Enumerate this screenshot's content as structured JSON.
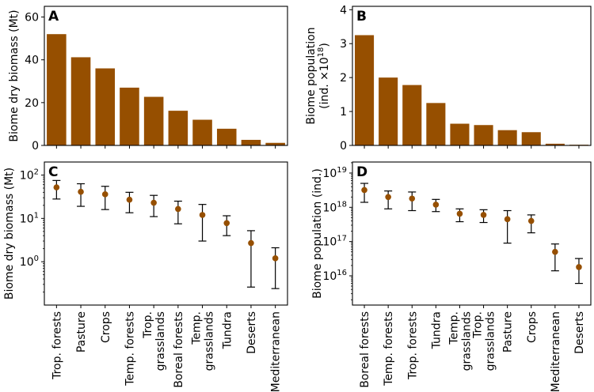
{
  "bar_color": "#964f00",
  "chart_data": [
    {
      "panel": "A",
      "type": "bar",
      "ylabel": "Biome dry biomass (Mt)",
      "categories": [
        "Trop. forests",
        "Pasture",
        "Crops",
        "Temp. forests",
        "Trop. grasslands",
        "Boreal forests",
        "Temp. grasslands",
        "Tundra",
        "Deserts",
        "Mediterranean"
      ],
      "values": [
        52.0,
        41.2,
        36.0,
        27.0,
        22.7,
        16.2,
        12.0,
        7.8,
        2.6,
        1.2
      ],
      "ylim": [
        0,
        65
      ],
      "ticks": [
        0,
        20,
        40,
        60
      ],
      "tick_labels": [
        "0",
        "20",
        "40",
        "60"
      ]
    },
    {
      "panel": "B",
      "type": "bar",
      "ylabel_line1": "Biome population",
      "ylabel_line2_prefix": "(ind. ×10",
      "ylabel_exp": "18",
      "ylabel_suffix": ")",
      "categories": [
        "Boreal forests",
        "Temp. forests",
        "Trop. forests",
        "Tundra",
        "Temp. grasslands",
        "Trop. grasslands",
        "Pasture",
        "Crops",
        "Mediterranean",
        "Deserts"
      ],
      "values": [
        3.25,
        2.0,
        1.78,
        1.25,
        0.64,
        0.6,
        0.45,
        0.39,
        0.05,
        0.02
      ],
      "ylim": [
        0,
        4.1
      ],
      "ticks": [
        0,
        1,
        2,
        3,
        4
      ],
      "tick_labels": [
        "0",
        "1",
        "2",
        "3",
        "4"
      ]
    },
    {
      "panel": "C",
      "type": "scatter",
      "yscale": "log",
      "ylabel": "Biome dry biomass (Mt)",
      "categories": [
        "Trop. forests",
        "Pasture",
        "Crops",
        "Temp. forests",
        "Trop. grasslands",
        "Boreal forests",
        "Temp. grasslands",
        "Tundra",
        "Deserts",
        "Mediterranean"
      ],
      "x_labels": [
        [
          "Trop. forests"
        ],
        [
          "Pasture"
        ],
        [
          "Crops"
        ],
        [
          "Temp. forests"
        ],
        [
          "Trop.",
          "grasslands"
        ],
        [
          "Boreal forests"
        ],
        [
          "Temp.",
          "grasslands"
        ],
        [
          "Tundra"
        ],
        [
          "Deserts"
        ],
        [
          "Mediterranean"
        ]
      ],
      "values": [
        52,
        41,
        36,
        27,
        23,
        16.5,
        12,
        7.8,
        2.7,
        1.2
      ],
      "lower": [
        28,
        19,
        16,
        13.5,
        11,
        7.5,
        3,
        4,
        0.26,
        0.24
      ],
      "upper": [
        75,
        63,
        55,
        40,
        34,
        25,
        21,
        11.5,
        5.2,
        2.1
      ],
      "ylim": [
        0.1,
        200
      ],
      "ticks": [
        1,
        10,
        100
      ],
      "tick_base": [
        "10",
        "10",
        "10"
      ],
      "tick_exp": [
        "0",
        "1",
        "2"
      ]
    },
    {
      "panel": "D",
      "type": "scatter",
      "yscale": "log",
      "ylabel": "Biome population (ind.)",
      "categories": [
        "Boreal forests",
        "Temp. forests",
        "Trop. forests",
        "Tundra",
        "Temp. grasslands",
        "Trop. grasslands",
        "Pasture",
        "Crops",
        "Mediterranean",
        "Deserts"
      ],
      "x_labels": [
        [
          "Boreal forests"
        ],
        [
          "Temp. forests"
        ],
        [
          "Trop. forests"
        ],
        [
          "Tundra"
        ],
        [
          "Temp.",
          "grasslands"
        ],
        [
          "Trop.",
          "grasslands"
        ],
        [
          "Pasture"
        ],
        [
          "Crops"
        ],
        [
          "Mediterranean"
        ],
        [
          "Deserts"
        ]
      ],
      "values": [
        3.2e+18,
        2e+18,
        1.8e+18,
        1.2e+18,
        6.5e+17,
        6e+17,
        4.5e+17,
        4e+17,
        5e+16,
        1.8e+16
      ],
      "lower": [
        1.4e+18,
        9e+17,
        8e+17,
        7.5e+17,
        3.8e+17,
        3.6e+17,
        9e+16,
        1.8e+17,
        1.4e+16,
        6000000000000000.0
      ],
      "upper": [
        5e+18,
        3e+18,
        2.8e+18,
        1.7e+18,
        9e+17,
        8.5e+17,
        8e+17,
        6e+17,
        8.5e+16,
        3.2e+16
      ],
      "ylim": [
        1400000000000000.0,
        2.1e+19
      ],
      "ticks": [
        1e+16,
        1e+17,
        1e+18,
        1e+19
      ],
      "tick_base": [
        "10",
        "10",
        "10",
        "10"
      ],
      "tick_exp": [
        "16",
        "17",
        "18",
        "19"
      ]
    }
  ]
}
